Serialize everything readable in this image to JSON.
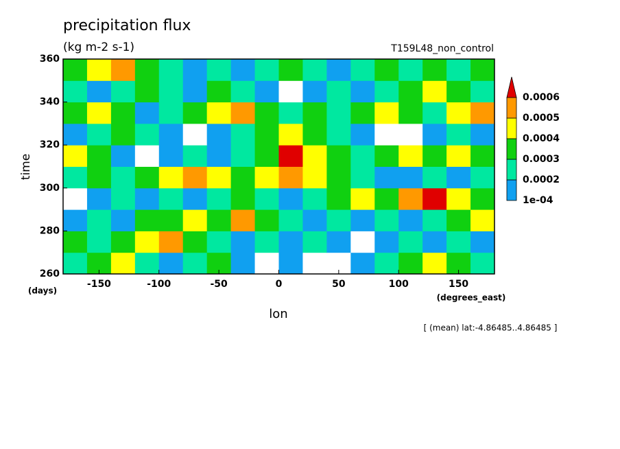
{
  "chart_data": {
    "type": "contour",
    "title": "precipitation flux",
    "subtitle": "(kg m-2 s-1)",
    "annotation": "T159L48_non_control",
    "xlabel": "lon",
    "xunits": "(degrees_east)",
    "ylabel": "time",
    "yunits": "(days)",
    "footnote": "[ (mean) lat:-4.86485..4.86485 ]",
    "xlim": [
      -180,
      180
    ],
    "ylim": [
      260,
      360
    ],
    "xticks": [
      -150,
      -100,
      -50,
      0,
      50,
      100,
      150
    ],
    "yticks": [
      260,
      280,
      300,
      320,
      340,
      360
    ],
    "x": [
      -170,
      -150,
      -130,
      -110,
      -90,
      -70,
      -50,
      -30,
      -10,
      10,
      30,
      50,
      70,
      90,
      110,
      130,
      150,
      170
    ],
    "y": [
      265,
      275,
      285,
      295,
      305,
      315,
      325,
      335,
      345,
      355
    ],
    "levels": [
      {
        "value": 0.0001,
        "label": "1e-04"
      },
      0.0002,
      0.0003,
      0.0004,
      0.0005,
      0.0006
    ],
    "colors": [
      "#10a0f0",
      "#00e8a0",
      "#10d010",
      "#ffff00",
      "#ff9900",
      "#e00000"
    ],
    "z": [
      [
        0.00025,
        0.00035,
        0.00045,
        0.00025,
        0.00015,
        0.00025,
        0.00035,
        0.00015,
        5e-05,
        0.00015,
        5e-05,
        5e-05,
        0.00015,
        0.00025,
        0.00035,
        0.00045,
        0.00035,
        0.00025
      ],
      [
        0.00035,
        0.00025,
        0.00035,
        0.00045,
        0.00055,
        0.00035,
        0.00025,
        0.00015,
        0.00025,
        0.00015,
        0.00025,
        0.00015,
        5e-05,
        0.00015,
        0.00025,
        0.00015,
        0.00025,
        0.00015
      ],
      [
        0.00015,
        0.00025,
        0.00015,
        0.00035,
        0.00035,
        0.00045,
        0.00035,
        0.00055,
        0.00035,
        0.00025,
        0.00015,
        0.00025,
        0.00015,
        0.00025,
        0.00015,
        0.00025,
        0.00035,
        0.00045
      ],
      [
        5e-05,
        0.00015,
        0.00025,
        0.00015,
        0.00025,
        0.00015,
        0.00025,
        0.00035,
        0.00025,
        0.00015,
        0.00025,
        0.00035,
        0.00045,
        0.00035,
        0.00055,
        0.00065,
        0.00045,
        0.00035
      ],
      [
        0.00025,
        0.00035,
        0.00025,
        0.00035,
        0.00045,
        0.00055,
        0.00045,
        0.00035,
        0.00045,
        0.00055,
        0.00045,
        0.00035,
        0.00025,
        0.00015,
        0.00015,
        0.00025,
        0.00015,
        0.00025
      ],
      [
        0.00045,
        0.00035,
        0.00015,
        5e-05,
        0.00015,
        0.00025,
        0.00015,
        0.00025,
        0.00035,
        0.00065,
        0.00045,
        0.00035,
        0.00025,
        0.00035,
        0.00045,
        0.00035,
        0.00045,
        0.00035
      ],
      [
        0.00015,
        0.00025,
        0.00035,
        0.00025,
        0.00015,
        5e-05,
        0.00015,
        0.00025,
        0.00035,
        0.00045,
        0.00035,
        0.00025,
        0.00015,
        5e-05,
        5e-05,
        0.00015,
        0.00025,
        0.00015
      ],
      [
        0.00035,
        0.00045,
        0.00035,
        0.00015,
        0.00025,
        0.00035,
        0.00045,
        0.00055,
        0.00035,
        0.00025,
        0.00035,
        0.00025,
        0.00035,
        0.00045,
        0.00035,
        0.00025,
        0.00045,
        0.00055
      ],
      [
        0.00025,
        0.00015,
        0.00025,
        0.00035,
        0.00025,
        0.00015,
        0.00035,
        0.00025,
        0.00015,
        5e-05,
        0.00015,
        0.00025,
        0.00015,
        0.00025,
        0.00035,
        0.00045,
        0.00035,
        0.00025
      ],
      [
        0.00035,
        0.00045,
        0.00055,
        0.00035,
        0.00025,
        0.00015,
        0.00025,
        0.00015,
        0.00025,
        0.00035,
        0.00025,
        0.00015,
        0.00025,
        0.00035,
        0.00025,
        0.00035,
        0.00025,
        0.00035
      ]
    ]
  }
}
